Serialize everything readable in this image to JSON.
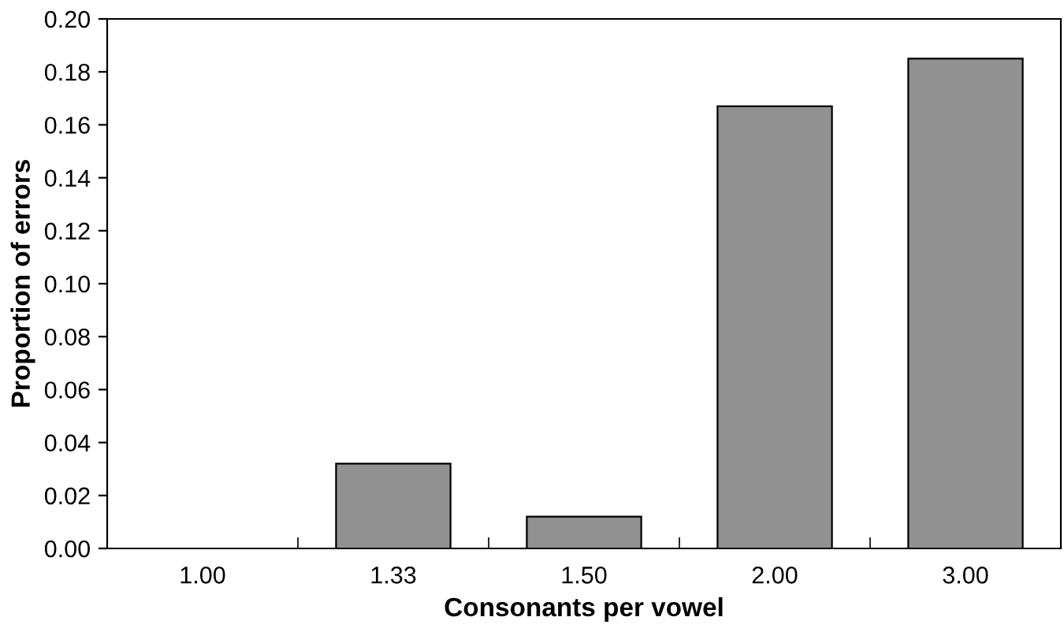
{
  "chart_data": {
    "type": "bar",
    "xlabel": "Consonants per vowel",
    "ylabel": "Proportion of errors",
    "categories": [
      "1.00",
      "1.33",
      "1.50",
      "2.00",
      "3.00"
    ],
    "values": [
      0,
      0.032,
      0.012,
      0.167,
      0.185
    ],
    "color": "#919191",
    "ylim": [
      0,
      0.2
    ],
    "yticks": [
      {
        "value": 0,
        "label": "0.00"
      },
      {
        "value": 0.02,
        "label": "0.02"
      },
      {
        "value": 0.04,
        "label": "0.04"
      },
      {
        "value": 0.06,
        "label": "0.06"
      },
      {
        "value": 0.08,
        "label": "0.08"
      },
      {
        "value": 0.1,
        "label": "0.10"
      },
      {
        "value": 0.12,
        "label": "0.12"
      },
      {
        "value": 0.14,
        "label": "0.14"
      },
      {
        "value": 0.16,
        "label": "0.16"
      },
      {
        "value": 0.18,
        "label": "0.18"
      },
      {
        "value": 0.2,
        "label": "0.20"
      }
    ],
    "grid": false
  }
}
